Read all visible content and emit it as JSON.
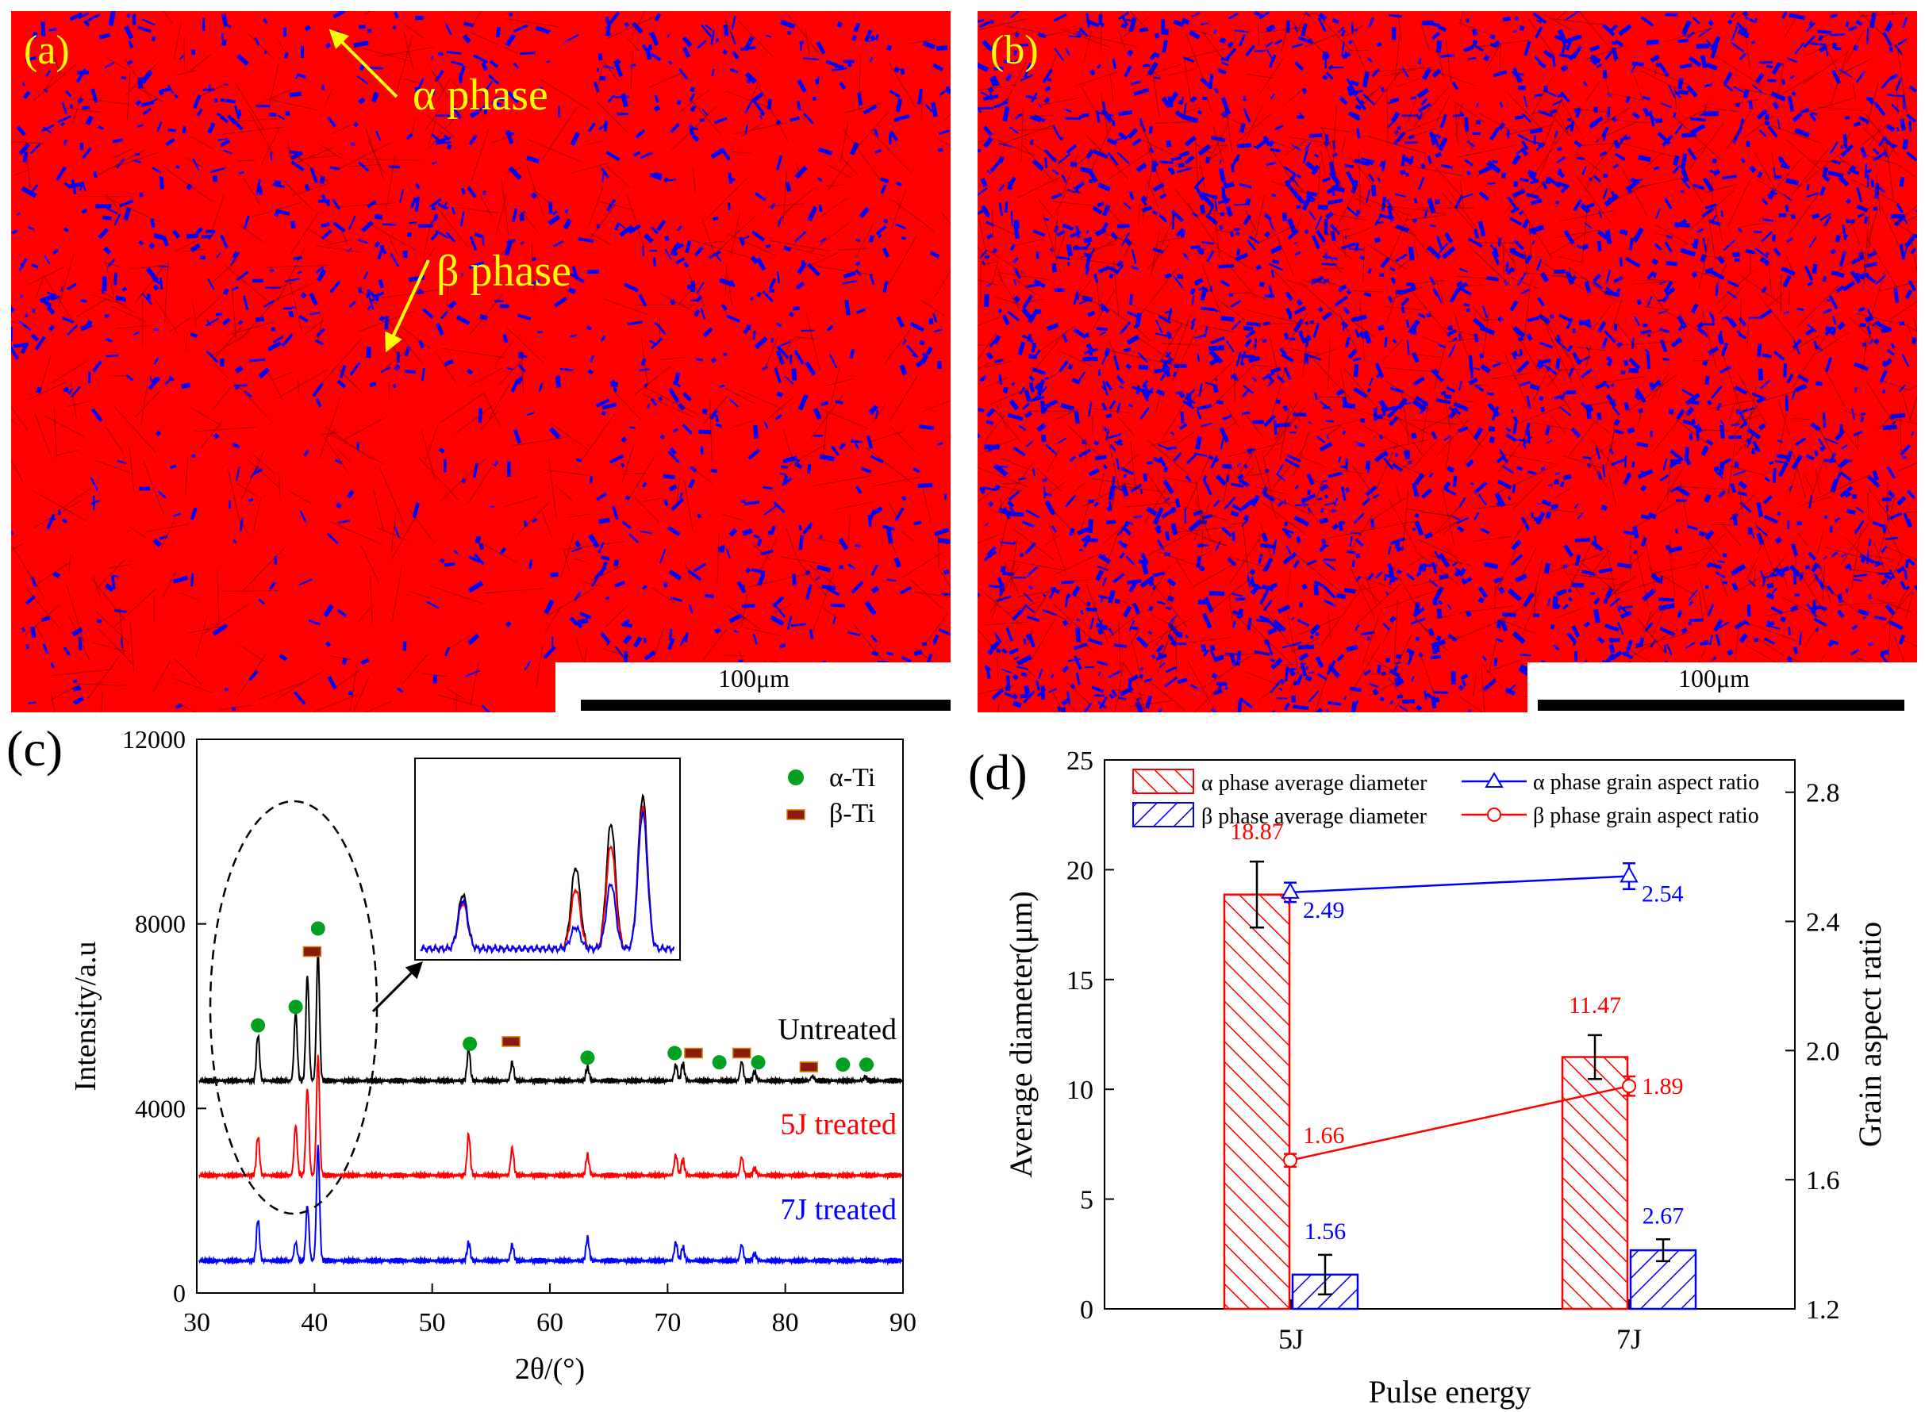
{
  "panels": {
    "a": {
      "label": "(a)",
      "annotations": [
        "α phase",
        "β phase"
      ],
      "scale_bar": "100μm"
    },
    "b": {
      "label": "(b)",
      "scale_bar": "100μm"
    },
    "c": {
      "label": "(c)"
    },
    "d": {
      "label": "(d)"
    }
  },
  "colors": {
    "alpha_map": "#ff0000",
    "beta_map": "#0000ff",
    "annot": "#ffff00",
    "black": "#000000",
    "red": "#ff0000",
    "blue": "#0000ff",
    "green": "#00a020",
    "brown": "#8b1a10"
  },
  "chart_data": [
    {
      "type": "line",
      "panel": "c",
      "xlabel": "2θ/(°)",
      "ylabel": "Intensity/a.u",
      "xlim": [
        30,
        90
      ],
      "ylim": [
        0,
        12000
      ],
      "xticks": [
        30,
        40,
        50,
        60,
        70,
        80,
        90
      ],
      "yticks": [
        0,
        4000,
        8000,
        12000
      ],
      "legend": [
        {
          "name": "α-Ti",
          "marker": "circle",
          "color": "#00a020"
        },
        {
          "name": "β-Ti",
          "marker": "rect",
          "color": "#8b1a10"
        }
      ],
      "series": [
        {
          "name": "Untreated",
          "color": "#000000",
          "baseline": 4600,
          "peaks": [
            [
              35.2,
              1000
            ],
            [
              38.4,
              1500
            ],
            [
              39.4,
              2300
            ],
            [
              40.3,
              2800
            ],
            [
              53.1,
              700
            ],
            [
              56.8,
              400
            ],
            [
              63.2,
              300
            ],
            [
              70.7,
              350
            ],
            [
              71.3,
              380
            ],
            [
              76.3,
              420
            ],
            [
              77.4,
              200
            ],
            [
              82.3,
              100
            ],
            [
              86.8,
              80
            ]
          ]
        },
        {
          "name": "5J treated",
          "color": "#ff0000",
          "baseline": 2550,
          "peaks": [
            [
              35.2,
              850
            ],
            [
              38.4,
              1100
            ],
            [
              39.4,
              1900
            ],
            [
              40.3,
              2600
            ],
            [
              53.1,
              900
            ],
            [
              56.8,
              600
            ],
            [
              63.2,
              450
            ],
            [
              70.7,
              450
            ],
            [
              71.3,
              350
            ],
            [
              76.3,
              400
            ],
            [
              77.4,
              150
            ]
          ]
        },
        {
          "name": "7J treated",
          "color": "#0000ff",
          "baseline": 700,
          "peaks": [
            [
              35.2,
              900
            ],
            [
              38.4,
              400
            ],
            [
              39.4,
              1200
            ],
            [
              40.3,
              2500
            ],
            [
              53.1,
              400
            ],
            [
              56.8,
              350
            ],
            [
              63.2,
              500
            ],
            [
              70.7,
              400
            ],
            [
              71.3,
              300
            ],
            [
              76.3,
              350
            ],
            [
              77.4,
              150
            ]
          ]
        }
      ],
      "markers": {
        "alpha": [
          [
            35.2,
            5800
          ],
          [
            38.4,
            6200
          ],
          [
            40.3,
            7900
          ],
          [
            53.2,
            5400
          ],
          [
            63.2,
            5100
          ],
          [
            70.6,
            5200
          ],
          [
            74.4,
            5000
          ],
          [
            77.7,
            5000
          ],
          [
            84.9,
            4950
          ],
          [
            86.9,
            4950
          ]
        ],
        "beta": [
          [
            39.8,
            7400
          ],
          [
            56.7,
            5450
          ],
          [
            72.2,
            5200
          ],
          [
            76.3,
            5200
          ],
          [
            82.0,
            4900
          ]
        ]
      }
    },
    {
      "type": "bar",
      "panel": "d",
      "categories": [
        "5J",
        "7J"
      ],
      "xlabel": "Pulse energy",
      "ylabel": "Average diameter(μm)",
      "ylabel_right": "Grain aspect ratio",
      "ylim": [
        0,
        25
      ],
      "ylim_right": [
        1.2,
        2.9
      ],
      "yticks": [
        0,
        5,
        10,
        15,
        20,
        25
      ],
      "yticks_right": [
        1.2,
        1.6,
        2.0,
        2.4,
        2.8
      ],
      "yticklabels_right": [
        "1.2",
        "1.6",
        "2.0",
        "2.4",
        "2.8"
      ],
      "series": [
        {
          "name": "α phase average diameter",
          "kind": "bar",
          "values": [
            18.87,
            11.47
          ],
          "labels": [
            "18.87",
            "11.47"
          ],
          "errors": [
            1.5,
            1.0
          ],
          "color": "#ff0000"
        },
        {
          "name": "β phase average diameter",
          "kind": "bar",
          "values": [
            1.56,
            2.67
          ],
          "labels": [
            "1.56",
            "2.67"
          ],
          "errors": [
            0.9,
            0.5
          ],
          "color": "#0000ff"
        },
        {
          "name": "α phase grain aspect ratio",
          "kind": "line",
          "values": [
            2.49,
            2.54
          ],
          "labels": [
            "2.49",
            "2.54"
          ],
          "errors": [
            0.03,
            0.04
          ],
          "color": "#0000ff",
          "marker": "triangle"
        },
        {
          "name": "β phase grain aspect ratio",
          "kind": "line",
          "values": [
            1.66,
            1.89
          ],
          "labels": [
            "1.66",
            "1.89"
          ],
          "errors": [
            0.02,
            0.03
          ],
          "color": "#ff0000",
          "marker": "circle"
        }
      ]
    }
  ]
}
